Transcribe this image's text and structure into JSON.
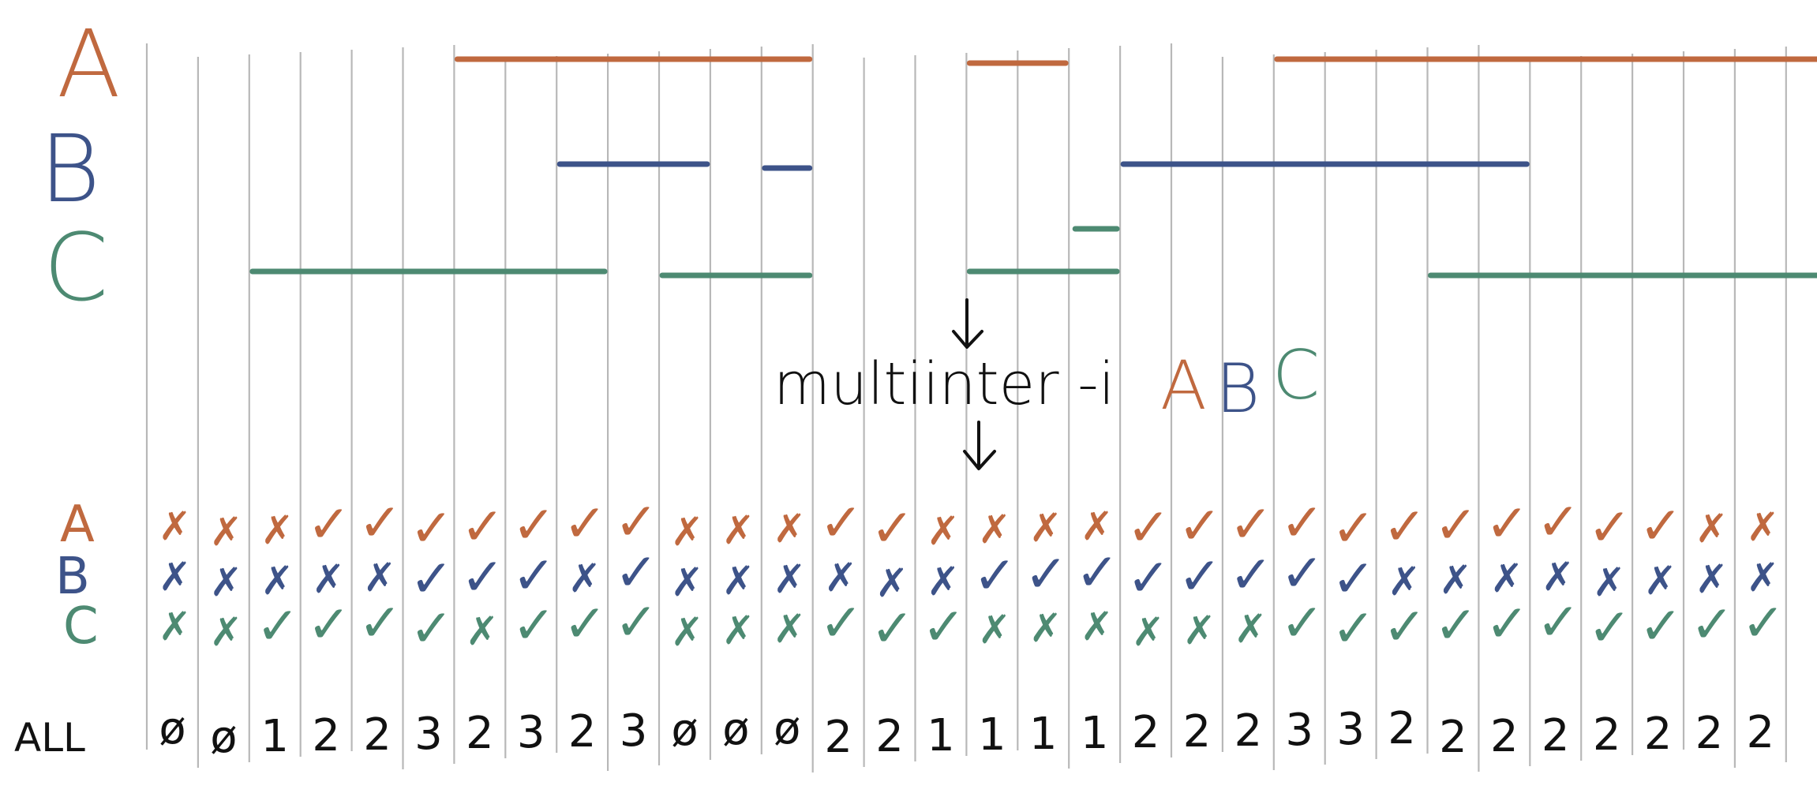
{
  "colors": {
    "A": "#c0693f",
    "B": "#3d5389",
    "C": "#4d8a72",
    "ink": "#111111",
    "grid": "#b8b8b8"
  },
  "tracks": [
    {
      "name": "A",
      "color": "#c0693f",
      "intervals": [
        [
          6,
          13
        ],
        [
          16,
          18
        ],
        [
          22,
          34
        ]
      ]
    },
    {
      "name": "B",
      "color": "#3d5389",
      "intervals": [
        [
          8,
          11
        ],
        [
          12,
          13
        ],
        [
          19,
          27
        ]
      ]
    },
    {
      "name": "C",
      "color": "#4d8a72",
      "intervals": [
        [
          2,
          9
        ],
        [
          10,
          13
        ],
        [
          16,
          19
        ],
        [
          25,
          36
        ]
      ]
    }
  ],
  "extra_segment": {
    "track": "C",
    "interval": [
      18,
      19
    ]
  },
  "command": {
    "text": "multiinter -i",
    "inputs": [
      "A",
      "B",
      "C"
    ]
  },
  "row_labels": [
    "A",
    "B",
    "C"
  ],
  "all_label": "ALL",
  "marks": {
    "check": "✓",
    "cross": "✗",
    "A": [
      "x",
      "x",
      "x",
      "v",
      "v",
      "v",
      "v",
      "v",
      "v",
      "v",
      "x",
      "x",
      "x",
      "v",
      "v",
      "x",
      "x",
      "x",
      "x",
      "v",
      "v",
      "v",
      "v",
      "v",
      "v",
      "v",
      "v",
      "v",
      "v",
      "v",
      "x",
      "x"
    ],
    "B": [
      "x",
      "x",
      "x",
      "x",
      "x",
      "v",
      "v",
      "v",
      "x",
      "v",
      "x",
      "x",
      "x",
      "x",
      "x",
      "x",
      "v",
      "v",
      "v",
      "v",
      "v",
      "v",
      "v",
      "v",
      "x",
      "x",
      "x",
      "x",
      "x",
      "x",
      "x",
      "x"
    ],
    "C": [
      "x",
      "x",
      "v",
      "v",
      "v",
      "v",
      "x",
      "v",
      "v",
      "v",
      "x",
      "x",
      "x",
      "v",
      "v",
      "v",
      "x",
      "x",
      "x",
      "x",
      "x",
      "x",
      "v",
      "v",
      "v",
      "v",
      "v",
      "v",
      "v",
      "v",
      "v",
      "v"
    ]
  },
  "counts": [
    "ø",
    "ø",
    "1",
    "2",
    "2",
    "3",
    "2",
    "3",
    "2",
    "3",
    "ø",
    "ø",
    "ø",
    "2",
    "2",
    "1",
    "1",
    "1",
    "1",
    "2",
    "2",
    "2",
    "3",
    "3",
    "2",
    "2",
    "2",
    "2",
    "2",
    "2",
    "2",
    "2"
  ]
}
